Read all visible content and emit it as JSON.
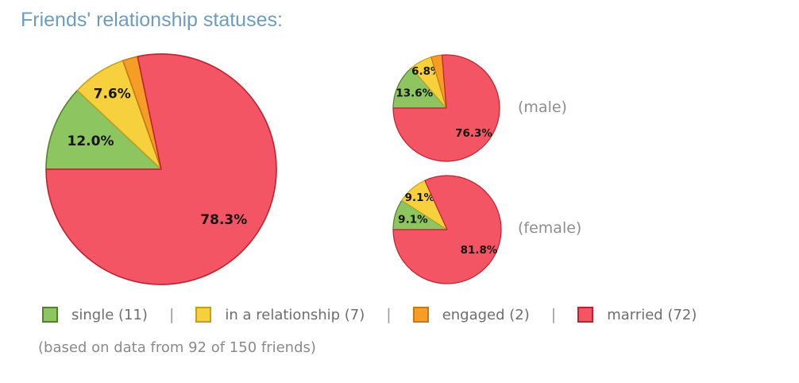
{
  "title": "Friends' relationship statuses:",
  "caption": "(based on data from 92 of 150 friends)",
  "colors": {
    "single": {
      "fill": "#8dc560",
      "border": "#567f2b"
    },
    "in_a_relationship": {
      "fill": "#f7d13d",
      "border": "#c3a11e"
    },
    "engaged": {
      "fill": "#f59d27",
      "border": "#c67813"
    },
    "married": {
      "fill": "#f45564",
      "border": "#be2130"
    }
  },
  "chart_data": [
    {
      "type": "pie",
      "name": "all-friends",
      "annotation": "",
      "start_position": "9-oclock",
      "direction": "clockwise",
      "slices": [
        {
          "status": "single",
          "percent": 12.0,
          "label": "12.0%"
        },
        {
          "status": "in_a_relationship",
          "percent": 7.6,
          "label": "7.6%"
        },
        {
          "status": "engaged",
          "percent": 2.1,
          "label": ""
        },
        {
          "status": "married",
          "percent": 78.3,
          "label": "78.3%"
        }
      ]
    },
    {
      "type": "pie",
      "name": "male",
      "annotation": "(male)",
      "start_position": "9-oclock",
      "direction": "clockwise",
      "slices": [
        {
          "status": "single",
          "percent": 13.6,
          "label": "13.6%"
        },
        {
          "status": "in_a_relationship",
          "percent": 6.8,
          "label": "6.8%"
        },
        {
          "status": "engaged",
          "percent": 3.3,
          "label": ""
        },
        {
          "status": "married",
          "percent": 76.3,
          "label": "76.3%"
        }
      ]
    },
    {
      "type": "pie",
      "name": "female",
      "annotation": "(female)",
      "start_position": "9-oclock",
      "direction": "clockwise",
      "slices": [
        {
          "status": "single",
          "percent": 9.1,
          "label": "9.1%"
        },
        {
          "status": "in_a_relationship",
          "percent": 9.1,
          "label": "9.1%"
        },
        {
          "status": "engaged",
          "percent": 0,
          "label": ""
        },
        {
          "status": "married",
          "percent": 81.8,
          "label": "81.8%"
        }
      ]
    }
  ],
  "legend": {
    "separator": "|",
    "items": [
      {
        "status": "single",
        "label": "single (11)"
      },
      {
        "status": "in_a_relationship",
        "label": "in a relationship (7)"
      },
      {
        "status": "engaged",
        "label": "engaged (2)"
      },
      {
        "status": "married",
        "label": "married (72)"
      }
    ]
  }
}
